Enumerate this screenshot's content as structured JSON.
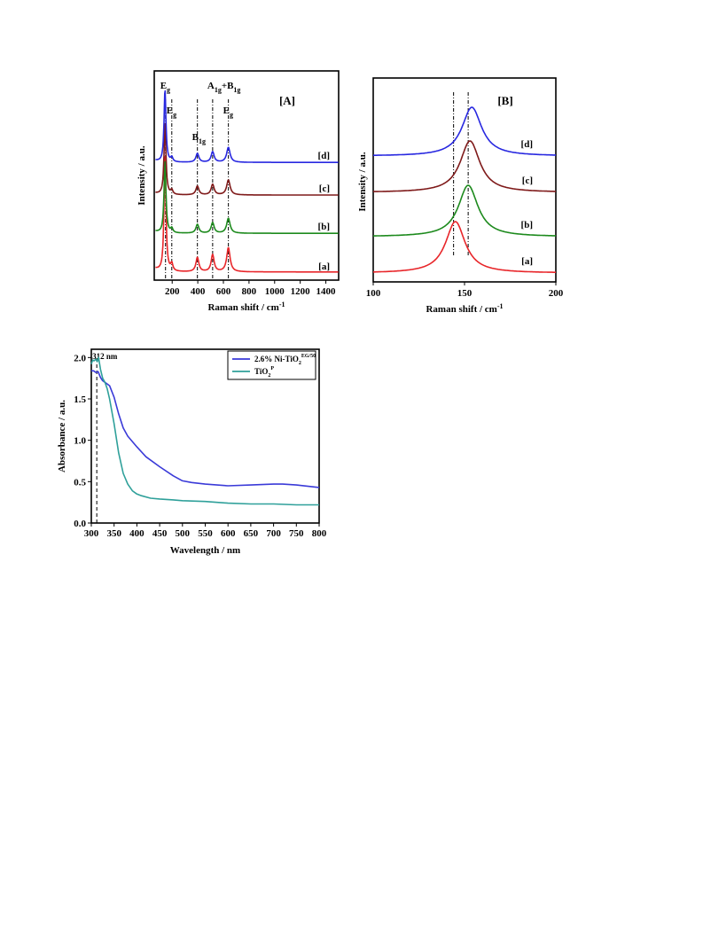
{
  "chart_data": [
    {
      "id": "A",
      "type": "line",
      "panel_label": "[A]",
      "xlabel": "Raman shift / cm",
      "xlabel_sup": "-1",
      "ylabel": "Intensity / a.u.",
      "xlim": [
        60,
        1500
      ],
      "xticks": [
        200,
        400,
        600,
        800,
        1000,
        1200,
        1400
      ],
      "series": [
        {
          "label": "[a]",
          "color": "#e8262a",
          "offset": 0.0,
          "scale": 1.0
        },
        {
          "label": "[b]",
          "color": "#1d8a1d",
          "offset": 0.28,
          "scale": 0.62
        },
        {
          "label": "[c]",
          "color": "#7f1a1a",
          "offset": 0.55,
          "scale": 0.62
        },
        {
          "label": "[d]",
          "color": "#2828e0",
          "offset": 0.78,
          "scale": 0.62
        }
      ],
      "peaks": [
        {
          "position": 144,
          "height": 0.82,
          "width": 9
        },
        {
          "position": 197,
          "height": 0.05,
          "width": 10
        },
        {
          "position": 397,
          "height": 0.1,
          "width": 14
        },
        {
          "position": 516,
          "height": 0.12,
          "width": 14
        },
        {
          "position": 639,
          "height": 0.17,
          "width": 16
        }
      ],
      "annotations": [
        {
          "main": "E",
          "sub": "g",
          "x": 148
        },
        {
          "main": "E",
          "sub": "g",
          "x": 197
        },
        {
          "main": "B",
          "sub": "1g",
          "x": 397
        },
        {
          "main": "A",
          "sub": "1g",
          "plus": "+B",
          "sub2": "1g",
          "x": 516
        },
        {
          "main": "E",
          "sub": "g",
          "x": 639
        }
      ],
      "guide_lines": [
        148,
        197,
        397,
        516,
        639
      ]
    },
    {
      "id": "B",
      "type": "line",
      "panel_label": "[B]",
      "xlabel": "Raman shift / cm",
      "xlabel_sup": "-1",
      "ylabel": "Intensity / a.u.",
      "xlim": [
        100,
        200
      ],
      "xticks": [
        100,
        150,
        200
      ],
      "series": [
        {
          "label": "[a]",
          "color": "#e8262a",
          "center": 145,
          "offset": 0.0
        },
        {
          "label": "[b]",
          "color": "#1d8a1d",
          "center": 152,
          "offset": 0.2
        },
        {
          "label": "[c]",
          "color": "#7f1a1a",
          "center": 153,
          "offset": 0.45
        },
        {
          "label": "[d]",
          "color": "#2828e0",
          "center": 154,
          "offset": 0.68
        }
      ],
      "guide_lines": [
        144,
        152
      ]
    },
    {
      "id": "C",
      "type": "line",
      "xlabel": "Wavelength / nm",
      "ylabel": "Absorbance / a.u.",
      "xlim": [
        300,
        800
      ],
      "ylim": [
        0.0,
        2.1
      ],
      "xticks": [
        300,
        350,
        400,
        450,
        500,
        550,
        600,
        650,
        700,
        750,
        800
      ],
      "yticks": [
        0.0,
        0.5,
        1.0,
        1.5,
        2.0
      ],
      "annotation": {
        "text": "312 nm",
        "x": 312
      },
      "series": [
        {
          "name": "2.6% Ni-TiO",
          "name_sub": "2",
          "name_sup": "EG/50",
          "color": "#3a3ad8",
          "x": [
            300,
            305,
            310,
            315,
            320,
            325,
            330,
            340,
            350,
            360,
            370,
            380,
            400,
            420,
            450,
            480,
            500,
            520,
            550,
            600,
            650,
            700,
            720,
            750,
            800
          ],
          "y": [
            1.84,
            1.84,
            1.82,
            1.83,
            1.76,
            1.72,
            1.7,
            1.66,
            1.52,
            1.32,
            1.15,
            1.05,
            0.92,
            0.8,
            0.68,
            0.57,
            0.51,
            0.49,
            0.47,
            0.45,
            0.46,
            0.47,
            0.47,
            0.46,
            0.43
          ]
        },
        {
          "name": "TiO",
          "name_sub": "2",
          "name_sup": "P",
          "color": "#2fa09a",
          "x": [
            300,
            303,
            306,
            310,
            313,
            316,
            320,
            325,
            330,
            335,
            340,
            350,
            360,
            370,
            380,
            390,
            400,
            410,
            430,
            450,
            480,
            500,
            550,
            600,
            650,
            700,
            750,
            800
          ],
          "y": [
            1.92,
            1.97,
            1.96,
            1.98,
            1.95,
            2.0,
            1.86,
            1.75,
            1.7,
            1.62,
            1.5,
            1.2,
            0.85,
            0.6,
            0.47,
            0.39,
            0.35,
            0.33,
            0.3,
            0.29,
            0.28,
            0.27,
            0.26,
            0.24,
            0.23,
            0.23,
            0.22,
            0.22
          ]
        }
      ]
    }
  ]
}
